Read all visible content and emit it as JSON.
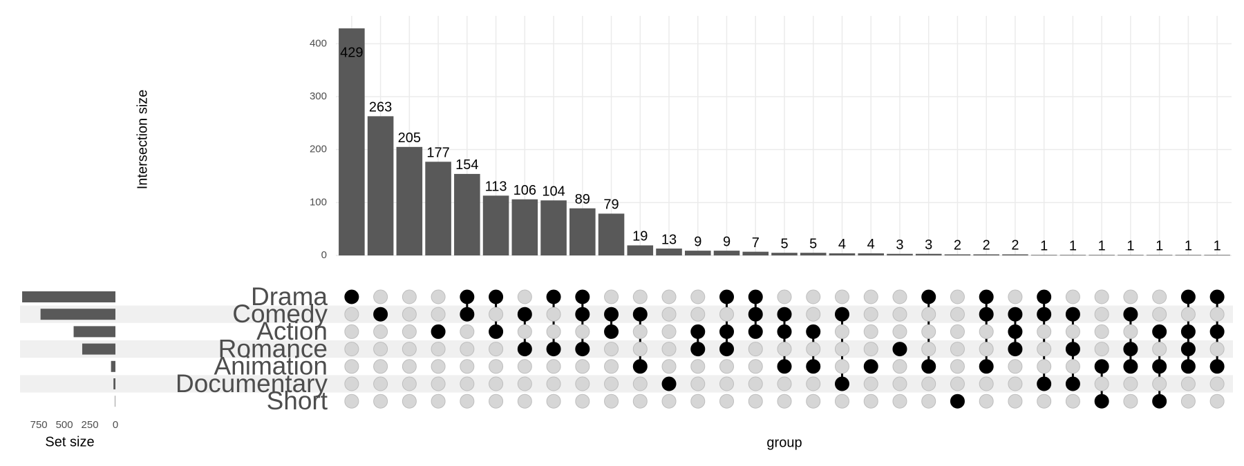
{
  "chart_data": {
    "type": "upset",
    "ylabel": "Intersection size",
    "xlabel": "group",
    "color": "#595959",
    "grid": true,
    "ylim": [
      0,
      450
    ],
    "yticks": [
      0,
      100,
      200,
      300,
      400
    ],
    "values": [
      429,
      263,
      205,
      177,
      154,
      113,
      106,
      104,
      89,
      79,
      19,
      13,
      9,
      9,
      7,
      5,
      5,
      4,
      4,
      3,
      3,
      2,
      2,
      2,
      1,
      1,
      1,
      1,
      1,
      1,
      1
    ],
    "sets": [
      "Drama",
      "Comedy",
      "Action",
      "Romance",
      "Animation",
      "Documentary",
      "Short"
    ],
    "matrix": [
      [
        1,
        0,
        0,
        0,
        1,
        1,
        0,
        1,
        1,
        0,
        0,
        0,
        0,
        1,
        1,
        0,
        0,
        0,
        0,
        0,
        1,
        0,
        1,
        0,
        1,
        0,
        0,
        0,
        0,
        1,
        1
      ],
      [
        0,
        1,
        0,
        0,
        1,
        0,
        1,
        0,
        1,
        1,
        1,
        0,
        0,
        0,
        1,
        1,
        0,
        1,
        0,
        0,
        0,
        0,
        1,
        1,
        1,
        1,
        0,
        1,
        0,
        0,
        0
      ],
      [
        0,
        0,
        0,
        1,
        0,
        1,
        0,
        0,
        0,
        1,
        0,
        0,
        1,
        1,
        1,
        1,
        1,
        0,
        0,
        0,
        0,
        0,
        0,
        1,
        0,
        0,
        0,
        0,
        1,
        1,
        1
      ],
      [
        0,
        0,
        0,
        0,
        0,
        0,
        1,
        1,
        1,
        0,
        0,
        0,
        1,
        1,
        0,
        0,
        0,
        0,
        0,
        1,
        0,
        0,
        0,
        1,
        0,
        1,
        0,
        1,
        0,
        1,
        0
      ],
      [
        0,
        0,
        0,
        0,
        0,
        0,
        0,
        0,
        0,
        0,
        1,
        0,
        0,
        0,
        0,
        1,
        1,
        0,
        1,
        0,
        1,
        0,
        1,
        0,
        0,
        0,
        1,
        1,
        1,
        1,
        1
      ],
      [
        0,
        0,
        0,
        0,
        0,
        0,
        0,
        0,
        0,
        0,
        0,
        1,
        0,
        0,
        0,
        0,
        0,
        1,
        0,
        0,
        0,
        0,
        0,
        0,
        1,
        1,
        0,
        0,
        0,
        0,
        0
      ],
      [
        0,
        0,
        0,
        0,
        0,
        0,
        0,
        0,
        0,
        0,
        0,
        0,
        0,
        0,
        0,
        0,
        0,
        0,
        0,
        0,
        0,
        1,
        0,
        0,
        0,
        0,
        1,
        0,
        1,
        0,
        0
      ]
    ],
    "set_sizes": [
      913,
      733,
      409,
      325,
      43,
      19,
      4
    ],
    "set_size_label": "Set size",
    "set_size_xlim": [
      920,
      0
    ],
    "set_size_xticks": [
      750,
      500,
      250,
      0
    ]
  }
}
